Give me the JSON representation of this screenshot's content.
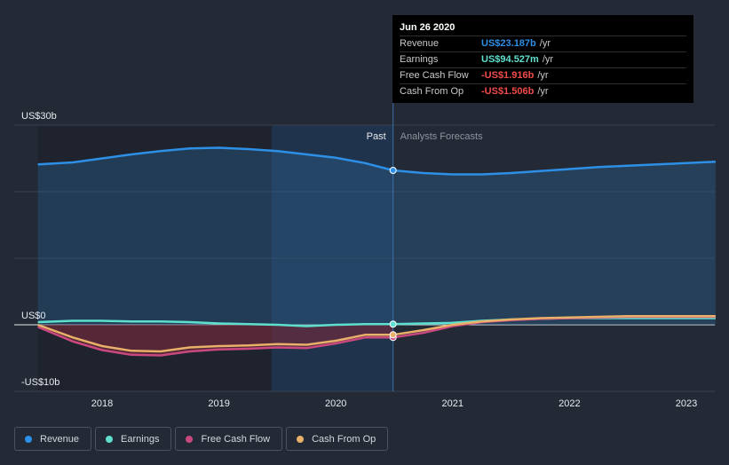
{
  "tooltip": {
    "date": "Jun 26 2020",
    "rows": [
      {
        "label": "Revenue",
        "value": "US$23.187b",
        "unit": "/yr",
        "color": "#2d8fe6"
      },
      {
        "label": "Earnings",
        "value": "US$94.527m",
        "unit": "/yr",
        "color": "#5fe0cf"
      },
      {
        "label": "Free Cash Flow",
        "value": "-US$1.916b",
        "unit": "/yr",
        "color": "#f04a4a"
      },
      {
        "label": "Cash From Op",
        "value": "-US$1.506b",
        "unit": "/yr",
        "color": "#f04a4a"
      }
    ]
  },
  "legend": [
    {
      "label": "Revenue",
      "color": "#2d8fe6"
    },
    {
      "label": "Earnings",
      "color": "#5fe0cf"
    },
    {
      "label": "Free Cash Flow",
      "color": "#c9497f"
    },
    {
      "label": "Cash From Op",
      "color": "#e8b068"
    }
  ],
  "chart_data": {
    "type": "line",
    "title": "",
    "xlabel": "",
    "ylabel": "",
    "xlim": [
      2017.45,
      2023.25
    ],
    "ylim": [
      -10,
      30
    ],
    "x_ticks": [
      2018,
      2019,
      2020,
      2021,
      2022,
      2023
    ],
    "y_tick_labels": [
      {
        "value": 30,
        "label": "US$30b"
      },
      {
        "value": 0,
        "label": "US$0"
      },
      {
        "value": -10,
        "label": "-US$10b"
      }
    ],
    "grid": true,
    "past_label": "Past",
    "forecast_label": "Analysts Forecasts",
    "divider_x": 2020.49,
    "highlight_start": 2019.45,
    "series": [
      {
        "name": "Revenue",
        "color": "#2d8fe6",
        "x": [
          2017.45,
          2017.75,
          2018.0,
          2018.25,
          2018.5,
          2018.75,
          2019.0,
          2019.25,
          2019.5,
          2019.75,
          2020.0,
          2020.25,
          2020.49,
          2020.75,
          2021.0,
          2021.25,
          2021.5,
          2021.75,
          2022.0,
          2022.25,
          2022.5,
          2022.75,
          2023.0,
          2023.25
        ],
        "y": [
          24.1,
          24.4,
          25.0,
          25.6,
          26.1,
          26.5,
          26.6,
          26.4,
          26.1,
          25.6,
          25.1,
          24.3,
          23.2,
          22.8,
          22.6,
          22.6,
          22.8,
          23.1,
          23.4,
          23.7,
          23.9,
          24.1,
          24.3,
          24.5
        ]
      },
      {
        "name": "Earnings",
        "color": "#5fe0cf",
        "x": [
          2017.45,
          2017.75,
          2018.0,
          2018.25,
          2018.5,
          2018.75,
          2019.0,
          2019.25,
          2019.5,
          2019.75,
          2020.0,
          2020.25,
          2020.49,
          2020.75,
          2021.0,
          2021.25,
          2021.5,
          2021.75,
          2022.0,
          2022.25,
          2022.5,
          2022.75,
          2023.0,
          2023.25
        ],
        "y": [
          0.4,
          0.6,
          0.6,
          0.5,
          0.5,
          0.4,
          0.2,
          0.1,
          0.0,
          -0.2,
          0.0,
          0.1,
          0.1,
          0.2,
          0.3,
          0.6,
          0.8,
          0.9,
          1.0,
          1.0,
          1.0,
          1.0,
          1.0,
          1.0
        ]
      },
      {
        "name": "Free Cash Flow",
        "color": "#c9497f",
        "x": [
          2017.45,
          2017.75,
          2018.0,
          2018.25,
          2018.5,
          2018.75,
          2019.0,
          2019.25,
          2019.5,
          2019.75,
          2020.0,
          2020.25,
          2020.49,
          2020.75,
          2021.0,
          2021.25,
          2021.5,
          2021.75,
          2022.0,
          2022.25,
          2022.5,
          2022.75,
          2023.0,
          2023.25
        ],
        "y": [
          -0.3,
          -2.5,
          -3.8,
          -4.5,
          -4.6,
          -4.0,
          -3.7,
          -3.6,
          -3.4,
          -3.5,
          -2.8,
          -1.9,
          -1.9,
          -1.2,
          -0.2,
          0.4,
          0.7,
          0.9,
          1.0,
          1.1,
          1.2,
          1.2,
          1.2,
          1.2
        ]
      },
      {
        "name": "Cash From Op",
        "color": "#e8b068",
        "x": [
          2017.45,
          2017.75,
          2018.0,
          2018.25,
          2018.5,
          2018.75,
          2019.0,
          2019.25,
          2019.5,
          2019.75,
          2020.0,
          2020.25,
          2020.49,
          2020.75,
          2021.0,
          2021.25,
          2021.5,
          2021.75,
          2022.0,
          2022.25,
          2022.5,
          2022.75,
          2023.0,
          2023.25
        ],
        "y": [
          0.0,
          -1.9,
          -3.2,
          -3.9,
          -4.0,
          -3.4,
          -3.2,
          -3.1,
          -2.9,
          -3.0,
          -2.4,
          -1.5,
          -1.5,
          -0.8,
          0.0,
          0.5,
          0.8,
          1.0,
          1.1,
          1.2,
          1.3,
          1.3,
          1.3,
          1.3
        ]
      }
    ]
  }
}
